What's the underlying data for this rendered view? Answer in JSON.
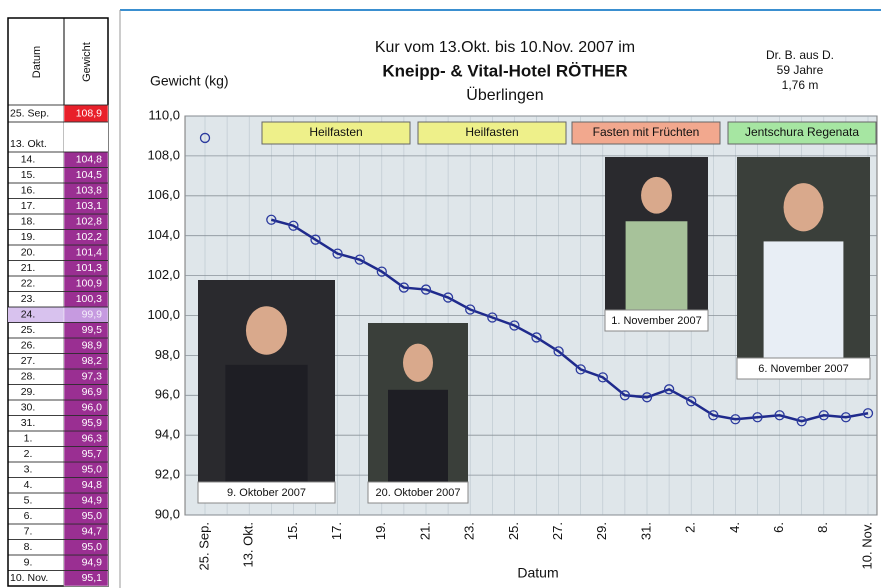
{
  "table": {
    "headers": [
      "Datum",
      "Gewicht"
    ],
    "rows": [
      [
        "25. Sep.",
        "108,9"
      ],
      [
        "13. Okt.",
        null
      ],
      [
        "14.",
        "104,8"
      ],
      [
        "15.",
        "104,5"
      ],
      [
        "16.",
        "103,8"
      ],
      [
        "17.",
        "103,1"
      ],
      [
        "18.",
        "102,8"
      ],
      [
        "19.",
        "102,2"
      ],
      [
        "20.",
        "101,4"
      ],
      [
        "21.",
        "101,3"
      ],
      [
        "22.",
        "100,9"
      ],
      [
        "23.",
        "100,3"
      ],
      [
        "24.",
        "99,9"
      ],
      [
        "25.",
        "99,5"
      ],
      [
        "26.",
        "98,9"
      ],
      [
        "27.",
        "98,2"
      ],
      [
        "28.",
        "97,3"
      ],
      [
        "29.",
        "96,9"
      ],
      [
        "30.",
        "96,0"
      ],
      [
        "31.",
        "95,9"
      ],
      [
        "1.",
        "96,3"
      ],
      [
        "2.",
        "95,7"
      ],
      [
        "3.",
        "95,0"
      ],
      [
        "4.",
        "94,8"
      ],
      [
        "5.",
        "94,9"
      ],
      [
        "6.",
        "95,0"
      ],
      [
        "7.",
        "94,7"
      ],
      [
        "8.",
        "95,0"
      ],
      [
        "9.",
        "94,9"
      ],
      [
        "10. Nov.",
        "95,1"
      ]
    ]
  },
  "chart_data": {
    "type": "line",
    "title_lines": [
      "Kur vom 13.Okt. bis 10.Nov. 2007 im",
      "Kneipp- & Vital-Hotel RÖTHER",
      "Überlingen"
    ],
    "info_lines": [
      "Dr. B. aus D.",
      "59 Jahre",
      "1,76 m"
    ],
    "y_label": "Gewicht (kg)",
    "x_label": "Datum",
    "categories": [
      "25. Sep.",
      null,
      "13. Okt.",
      null,
      "15.",
      null,
      "17.",
      null,
      "19.",
      null,
      "21.",
      null,
      "23.",
      null,
      "25.",
      null,
      "27.",
      null,
      "29.",
      null,
      "31.",
      null,
      "2.",
      null,
      "4.",
      null,
      "6.",
      null,
      "8.",
      null,
      "10. Nov."
    ],
    "values": [
      108.9,
      null,
      null,
      104.8,
      104.5,
      103.8,
      103.1,
      102.8,
      102.2,
      101.4,
      101.3,
      100.9,
      100.3,
      99.9,
      99.5,
      98.9,
      98.2,
      97.3,
      96.9,
      96.0,
      95.9,
      96.3,
      95.7,
      95.0,
      94.8,
      94.9,
      95.0,
      94.7,
      95.0,
      94.9,
      95.1
    ],
    "color": "#1f2a8c",
    "ylim": [
      90,
      110
    ],
    "yticks": [
      {
        "value": 90,
        "label": "90,0"
      },
      {
        "value": 92,
        "label": "92,0"
      },
      {
        "value": 94,
        "label": "94,0"
      },
      {
        "value": 96,
        "label": "96,0"
      },
      {
        "value": 98,
        "label": "98,0"
      },
      {
        "value": 100,
        "label": "100,0"
      },
      {
        "value": 102,
        "label": "102,0"
      },
      {
        "value": 104,
        "label": "104,0"
      },
      {
        "value": 106,
        "label": "106,0"
      },
      {
        "value": 108,
        "label": "108,0"
      },
      {
        "value": 110,
        "label": "110,0"
      }
    ],
    "grid": true,
    "annotations": [
      {
        "text": "Heilfasten",
        "color": "#eef08a"
      },
      {
        "text": "Heilfasten",
        "color": "#eef08a"
      },
      {
        "text": "Fasten mit Früchten",
        "color": "#f2a88e"
      },
      {
        "text": "Jentschura Regenata",
        "color": "#a6e6a2"
      }
    ],
    "photo_captions": [
      "9. Oktober 2007",
      "20. Oktober 2007",
      "1. November 2007",
      "6. November 2007"
    ]
  }
}
